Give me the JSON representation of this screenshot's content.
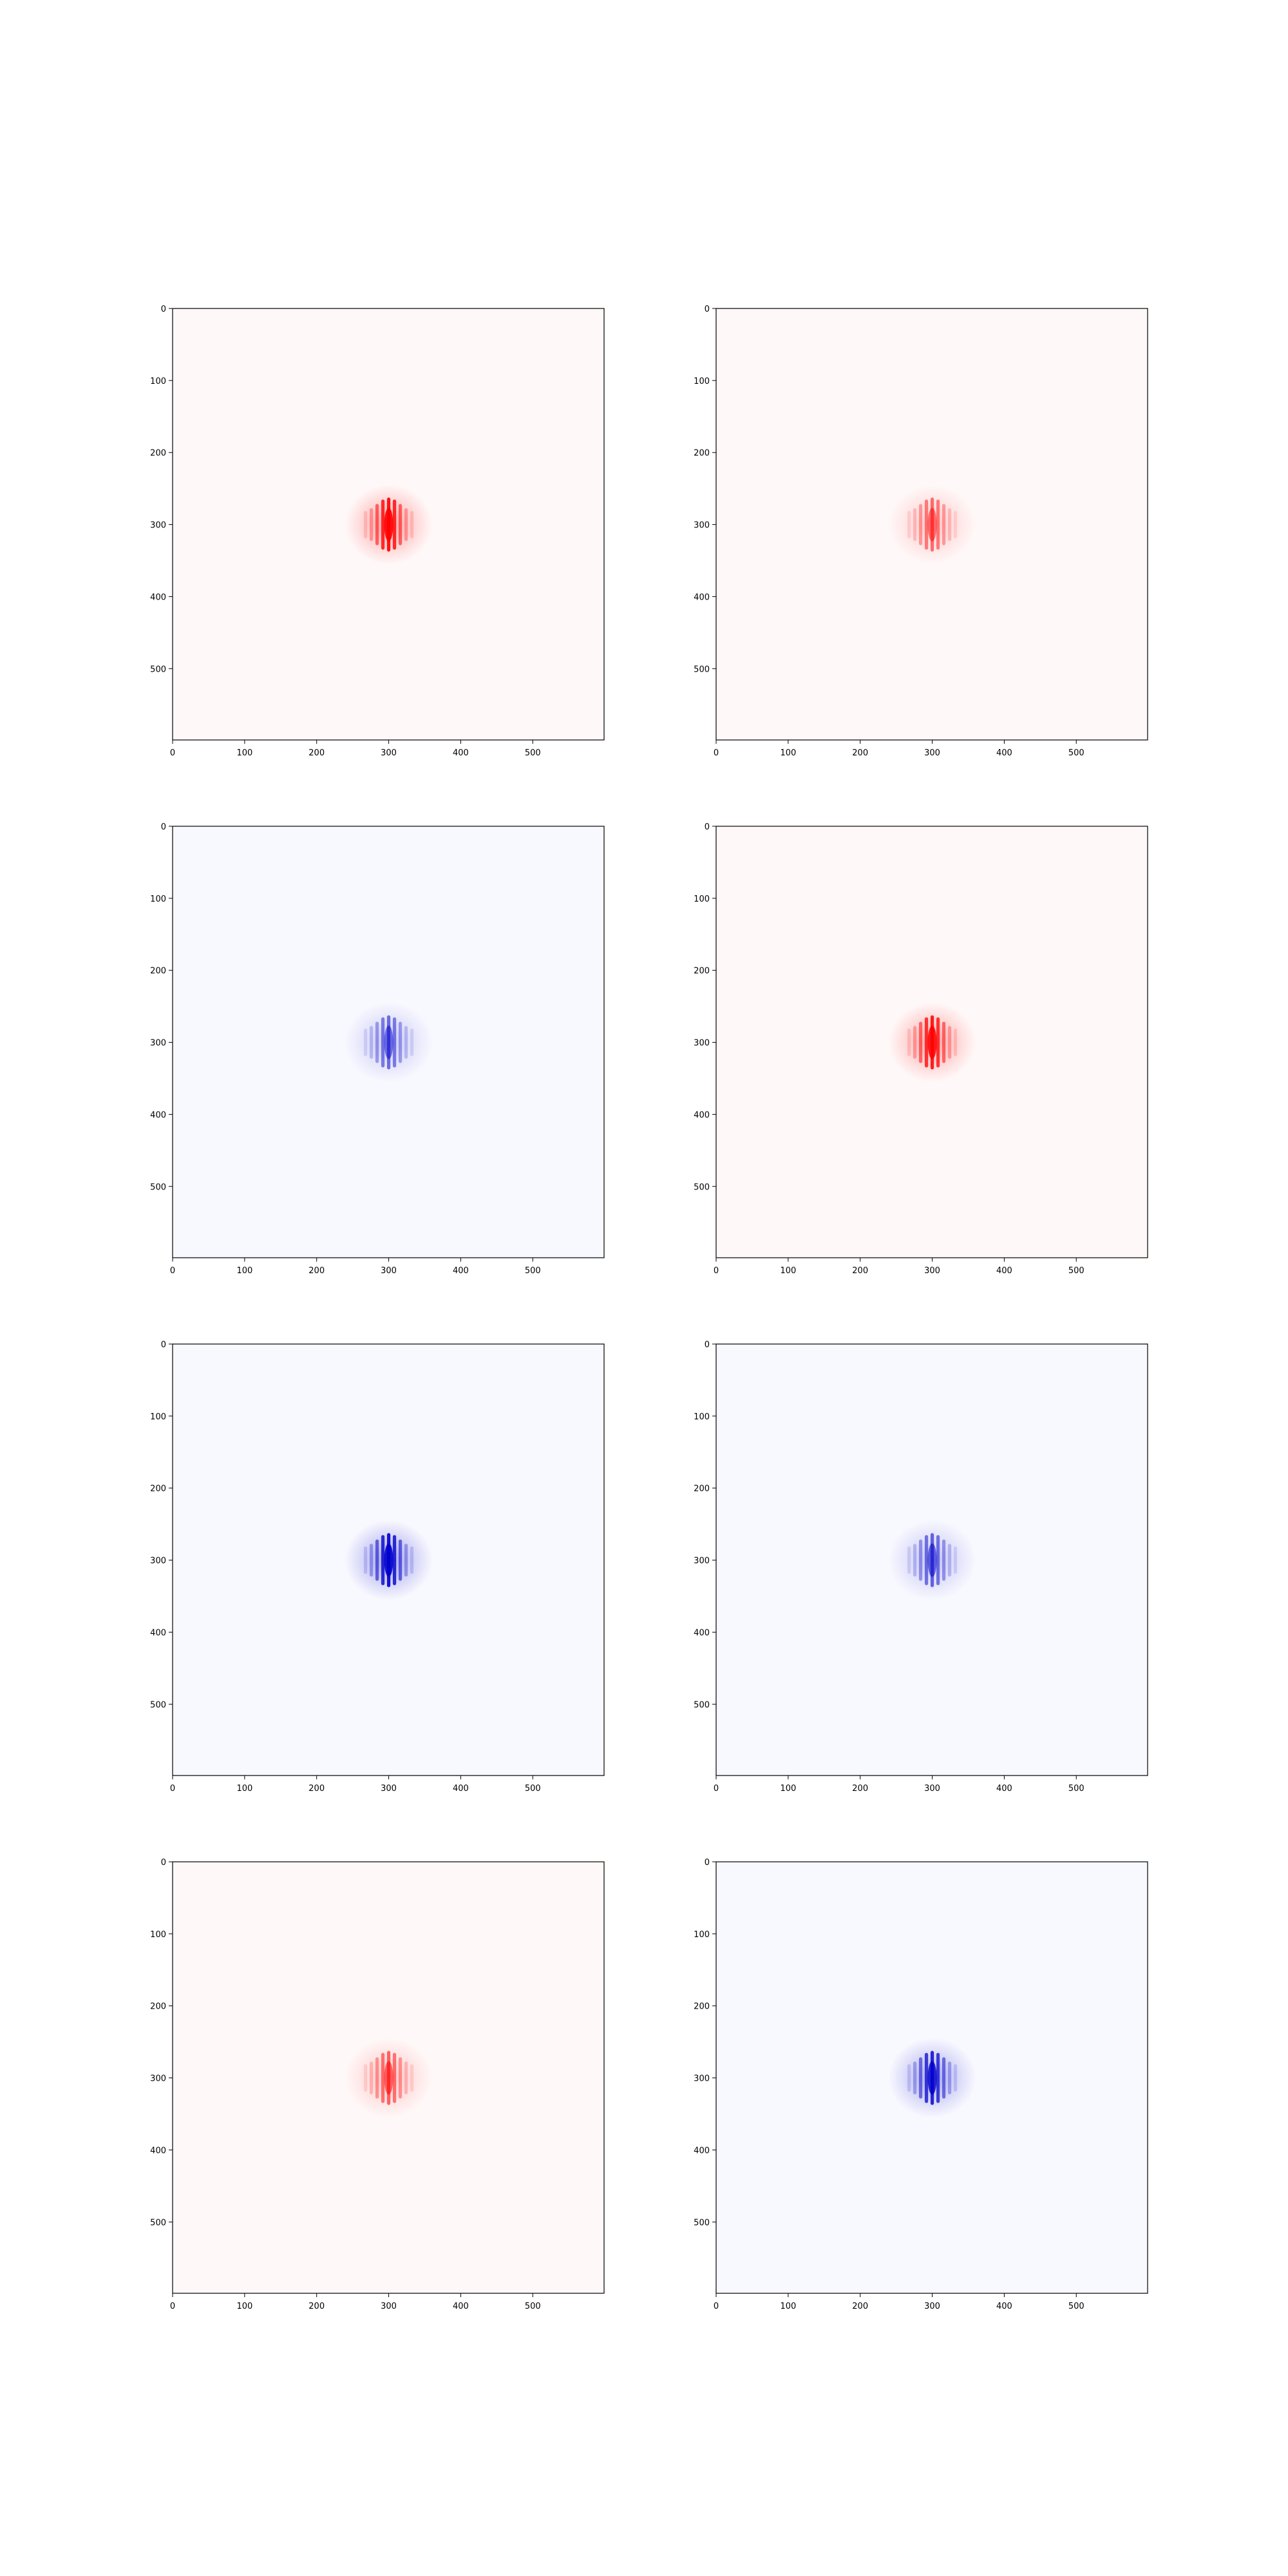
{
  "chart_data": [
    {
      "type": "heatmap",
      "panel": "row 1, column 1",
      "polarity": "positive",
      "intensity": 1.0,
      "center": [
        300,
        300
      ],
      "xlim": [
        0,
        599
      ],
      "ylim": [
        599,
        0
      ],
      "xticks": [
        0,
        100,
        200,
        300,
        400,
        500
      ],
      "yticks": [
        0,
        100,
        200,
        300,
        400,
        500
      ],
      "xtick_labels": [
        "0",
        "100",
        "200",
        "300",
        "400",
        "500"
      ],
      "ytick_labels": [
        "0",
        "100",
        "200",
        "300",
        "400",
        "500"
      ],
      "title": "",
      "xlabel": "",
      "ylabel": ""
    },
    {
      "type": "heatmap",
      "panel": "row 1, column 2",
      "polarity": "positive",
      "intensity": 0.55,
      "center": [
        300,
        300
      ],
      "xlim": [
        0,
        599
      ],
      "ylim": [
        599,
        0
      ],
      "xticks": [
        0,
        100,
        200,
        300,
        400,
        500
      ],
      "yticks": [
        0,
        100,
        200,
        300,
        400,
        500
      ],
      "xtick_labels": [
        "0",
        "100",
        "200",
        "300",
        "400",
        "500"
      ],
      "ytick_labels": [
        "0",
        "100",
        "200",
        "300",
        "400",
        "500"
      ],
      "title": "",
      "xlabel": "",
      "ylabel": ""
    },
    {
      "type": "heatmap",
      "panel": "row 2, column 1",
      "polarity": "negative",
      "intensity": 0.55,
      "center": [
        300,
        300
      ],
      "xlim": [
        0,
        599
      ],
      "ylim": [
        599,
        0
      ],
      "xticks": [
        0,
        100,
        200,
        300,
        400,
        500
      ],
      "yticks": [
        0,
        100,
        200,
        300,
        400,
        500
      ],
      "xtick_labels": [
        "0",
        "100",
        "200",
        "300",
        "400",
        "500"
      ],
      "ytick_labels": [
        "0",
        "100",
        "200",
        "300",
        "400",
        "500"
      ],
      "title": "",
      "xlabel": "",
      "ylabel": ""
    },
    {
      "type": "heatmap",
      "panel": "row 2, column 2",
      "polarity": "positive",
      "intensity": 0.95,
      "center": [
        300,
        300
      ],
      "xlim": [
        0,
        599
      ],
      "ylim": [
        599,
        0
      ],
      "xticks": [
        0,
        100,
        200,
        300,
        400,
        500
      ],
      "yticks": [
        0,
        100,
        200,
        300,
        400,
        500
      ],
      "xtick_labels": [
        "0",
        "100",
        "200",
        "300",
        "400",
        "500"
      ],
      "ytick_labels": [
        "0",
        "100",
        "200",
        "300",
        "400",
        "500"
      ],
      "title": "",
      "xlabel": "",
      "ylabel": ""
    },
    {
      "type": "heatmap",
      "panel": "row 3, column 1",
      "polarity": "negative",
      "intensity": 1.0,
      "center": [
        300,
        300
      ],
      "xlim": [
        0,
        599
      ],
      "ylim": [
        599,
        0
      ],
      "xticks": [
        0,
        100,
        200,
        300,
        400,
        500
      ],
      "yticks": [
        0,
        100,
        200,
        300,
        400,
        500
      ],
      "xtick_labels": [
        "0",
        "100",
        "200",
        "300",
        "400",
        "500"
      ],
      "ytick_labels": [
        "0",
        "100",
        "200",
        "300",
        "400",
        "500"
      ],
      "title": "",
      "xlabel": "",
      "ylabel": ""
    },
    {
      "type": "heatmap",
      "panel": "row 3, column 2",
      "polarity": "negative",
      "intensity": 0.6,
      "center": [
        300,
        300
      ],
      "xlim": [
        0,
        599
      ],
      "ylim": [
        599,
        0
      ],
      "xticks": [
        0,
        100,
        200,
        300,
        400,
        500
      ],
      "yticks": [
        0,
        100,
        200,
        300,
        400,
        500
      ],
      "xtick_labels": [
        "0",
        "100",
        "200",
        "300",
        "400",
        "500"
      ],
      "ytick_labels": [
        "0",
        "100",
        "200",
        "300",
        "400",
        "500"
      ],
      "title": "",
      "xlabel": "",
      "ylabel": ""
    },
    {
      "type": "heatmap",
      "panel": "row 4, column 1",
      "polarity": "positive",
      "intensity": 0.6,
      "center": [
        300,
        300
      ],
      "xlim": [
        0,
        599
      ],
      "ylim": [
        599,
        0
      ],
      "xticks": [
        0,
        100,
        200,
        300,
        400,
        500
      ],
      "yticks": [
        0,
        100,
        200,
        300,
        400,
        500
      ],
      "xtick_labels": [
        "0",
        "100",
        "200",
        "300",
        "400",
        "500"
      ],
      "ytick_labels": [
        "0",
        "100",
        "200",
        "300",
        "400",
        "500"
      ],
      "title": "",
      "xlabel": "",
      "ylabel": ""
    },
    {
      "type": "heatmap",
      "panel": "row 4, column 2",
      "polarity": "negative",
      "intensity": 0.9,
      "center": [
        300,
        300
      ],
      "xlim": [
        0,
        599
      ],
      "ylim": [
        599,
        0
      ],
      "xticks": [
        0,
        100,
        200,
        300,
        400,
        500
      ],
      "yticks": [
        0,
        100,
        200,
        300,
        400,
        500
      ],
      "xtick_labels": [
        "0",
        "100",
        "200",
        "300",
        "400",
        "500"
      ],
      "ytick_labels": [
        "0",
        "100",
        "200",
        "300",
        "400",
        "500"
      ],
      "title": "",
      "xlabel": "",
      "ylabel": ""
    }
  ],
  "colors": {
    "positive": "#ff0000",
    "negative": "#0000cc",
    "positive_background": "#fff8f8",
    "negative_background": "#f8f8ff",
    "axis": "#000000",
    "page_background": "#ffffff"
  }
}
